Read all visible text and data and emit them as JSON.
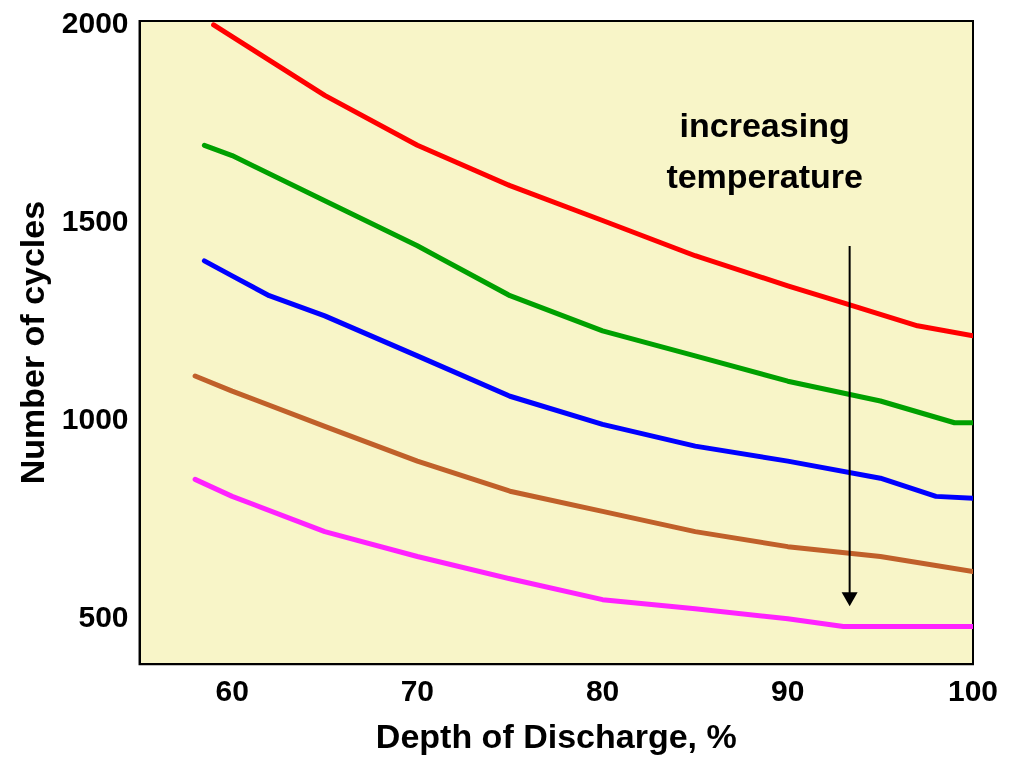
{
  "chart_data": {
    "type": "line",
    "xlabel": "Depth of Discharge, %",
    "ylabel": "Number of cycles",
    "xlim": [
      55,
      100
    ],
    "ylim": [
      385,
      2010
    ],
    "xticks": [
      60,
      70,
      80,
      90,
      100
    ],
    "yticks": [
      500,
      1000,
      1500,
      2000
    ],
    "grid": false,
    "legend": false,
    "marker": "none",
    "line_style": "solid",
    "annotations": [
      "increasing temperature"
    ],
    "series": [
      {
        "color": "#ff0000",
        "x": [
          59,
          65,
          70,
          75,
          80,
          85,
          90,
          93,
          97,
          100
        ],
        "values": [
          2000,
          1822,
          1696,
          1594,
          1506,
          1417,
          1341,
          1298,
          1240,
          1215
        ]
      },
      {
        "color": "#00a000",
        "x": [
          58.5,
          60,
          65,
          70,
          75,
          80,
          85,
          90,
          95,
          99,
          100
        ],
        "values": [
          1696,
          1670,
          1556,
          1442,
          1316,
          1227,
          1164,
          1100,
          1050,
          995,
          995
        ]
      },
      {
        "color": "#0000ff",
        "x": [
          58.5,
          60,
          62,
          65,
          70,
          75,
          80,
          85,
          90,
          95,
          98,
          100
        ],
        "values": [
          1404,
          1366,
          1316,
          1265,
          1164,
          1062,
          991,
          936,
          898,
          855,
          809,
          804
        ]
      },
      {
        "color": "#c0602a",
        "x": [
          58,
          60,
          65,
          70,
          75,
          80,
          85,
          90,
          95,
          100
        ],
        "values": [
          1113,
          1075,
          986,
          898,
          822,
          771,
          720,
          682,
          657,
          619
        ]
      },
      {
        "color": "#ff22ff",
        "x": [
          58,
          60,
          65,
          70,
          75,
          80,
          85,
          90,
          93,
          100
        ],
        "values": [
          852,
          809,
          720,
          657,
          601,
          548,
          525,
          500,
          480,
          480
        ]
      }
    ]
  }
}
